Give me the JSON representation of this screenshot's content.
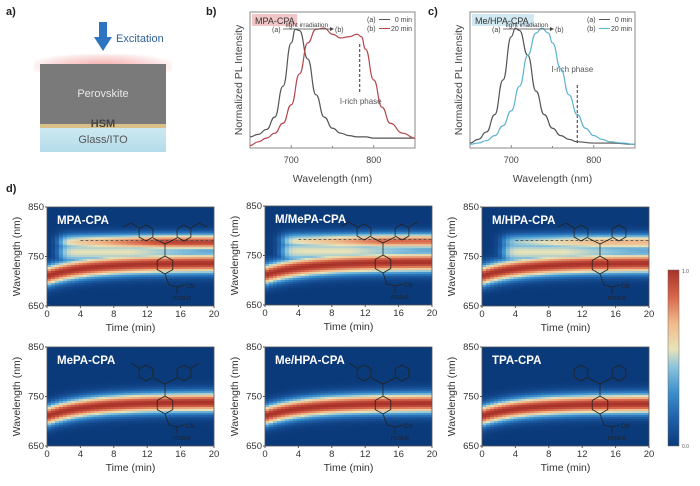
{
  "panels": {
    "a": {
      "label": "a)",
      "excitation_label": "Excitation",
      "layers": [
        "Perovskite",
        "HSM",
        "Glass/ITO"
      ],
      "colors": {
        "perovskite": "#7a7a7a",
        "glow": "#f4a6a6",
        "hsm": "#d9c089",
        "glass": "#bfe3ee",
        "arrow": "#2f74c0"
      }
    },
    "b": {
      "label": "b)"
    },
    "c": {
      "label": "c)"
    },
    "d": {
      "label": "d)"
    }
  },
  "chart_data": [
    {
      "id": "b",
      "type": "line",
      "title": "MPA-CPA",
      "title_bg": "#f2c6c6",
      "xlabel": "Wavelength (nm)",
      "ylabel": "Normalized PL Intensity",
      "xlim": [
        650,
        850
      ],
      "ylim": [
        0,
        1.1
      ],
      "xticks": [
        700,
        800
      ],
      "annotation_arrow": {
        "from": "(a)",
        "to": "(b)",
        "text": "light irradiation"
      },
      "dashed_line": {
        "x": 783,
        "label": "I-rich phase"
      },
      "legend": [
        {
          "key": "(a)",
          "name": "0 min",
          "color": "#555555"
        },
        {
          "key": "(b)",
          "name": "20 min",
          "color": "#b5474b"
        }
      ],
      "series": [
        {
          "name": "0 min",
          "color": "#555555",
          "x": [
            650,
            660,
            670,
            680,
            690,
            700,
            705,
            710,
            720,
            730,
            740,
            750,
            760,
            770,
            780,
            790,
            800,
            820,
            850
          ],
          "y": [
            0.09,
            0.11,
            0.15,
            0.25,
            0.5,
            0.85,
            0.96,
            0.95,
            0.72,
            0.43,
            0.25,
            0.16,
            0.12,
            0.1,
            0.09,
            0.09,
            0.08,
            0.08,
            0.08
          ]
        },
        {
          "name": "20 min",
          "color": "#b5474b",
          "x": [
            650,
            660,
            670,
            680,
            690,
            700,
            710,
            720,
            730,
            740,
            750,
            760,
            770,
            780,
            785,
            790,
            800,
            810,
            820,
            835,
            850
          ],
          "y": [
            0.02,
            0.05,
            0.08,
            0.12,
            0.2,
            0.35,
            0.6,
            0.85,
            0.96,
            0.97,
            0.92,
            0.89,
            0.9,
            0.92,
            0.9,
            0.8,
            0.55,
            0.33,
            0.2,
            0.12,
            0.08
          ]
        }
      ]
    },
    {
      "id": "c",
      "type": "line",
      "title": "Me/HPA-CPA",
      "title_bg": "#cfe8f2",
      "xlabel": "Wavelength (nm)",
      "ylabel": "Normalized PL Intensity",
      "xlim": [
        650,
        850
      ],
      "ylim": [
        0,
        1.1
      ],
      "xticks": [
        700,
        800
      ],
      "annotation_arrow": {
        "from": "(a)",
        "to": "(b)",
        "text": "light irradiation"
      },
      "dashed_line": {
        "x": 780,
        "label": "I-rich phase"
      },
      "legend": [
        {
          "key": "(a)",
          "name": "0 min",
          "color": "#555555"
        },
        {
          "key": "(b)",
          "name": "20 min",
          "color": "#5fb3d0"
        }
      ],
      "series": [
        {
          "name": "0 min",
          "color": "#555555",
          "x": [
            650,
            660,
            670,
            680,
            690,
            700,
            705,
            710,
            720,
            730,
            740,
            750,
            760,
            770,
            780,
            800,
            820,
            850
          ],
          "y": [
            0.04,
            0.07,
            0.13,
            0.27,
            0.55,
            0.9,
            0.97,
            0.95,
            0.75,
            0.46,
            0.27,
            0.16,
            0.1,
            0.07,
            0.05,
            0.04,
            0.04,
            0.03
          ]
        },
        {
          "name": "20 min",
          "color": "#5fb3d0",
          "x": [
            650,
            660,
            670,
            680,
            690,
            700,
            710,
            720,
            730,
            737,
            745,
            750,
            760,
            770,
            780,
            790,
            800,
            810,
            820,
            835,
            850
          ],
          "y": [
            0.03,
            0.04,
            0.06,
            0.1,
            0.18,
            0.3,
            0.5,
            0.75,
            0.93,
            0.97,
            0.93,
            0.85,
            0.64,
            0.43,
            0.27,
            0.16,
            0.1,
            0.07,
            0.05,
            0.04,
            0.03
          ]
        }
      ]
    },
    {
      "id": "d",
      "type": "heatmap",
      "xlabel": "Time (min)",
      "ylabel": "Wavelength (nm)",
      "xlim": [
        0,
        20
      ],
      "ylim": [
        650,
        850
      ],
      "xticks": [
        0,
        4,
        8,
        12,
        16,
        20
      ],
      "yticks": [
        650,
        750,
        850
      ],
      "colorbar": {
        "min": "0.0",
        "max": "1.0",
        "colormap": "RdYlBu_r"
      },
      "i_rich_line_nm": 782,
      "maps": [
        {
          "name": "MPA-CPA",
          "structure": "OMe/OMe",
          "main_peak_start": 712,
          "main_peak_end": 738,
          "i_rich": true,
          "i_rich_strength": 0.95,
          "i_rich_onset_min": 1.5
        },
        {
          "name": "M/MePA-CPA",
          "structure": "OMe/Me",
          "main_peak_start": 712,
          "main_peak_end": 738,
          "i_rich": true,
          "i_rich_strength": 0.85,
          "i_rich_onset_min": 2.0
        },
        {
          "name": "M/HPA-CPA",
          "structure": "OMe/H",
          "main_peak_start": 712,
          "main_peak_end": 738,
          "i_rich": true,
          "i_rich_strength": 0.7,
          "i_rich_onset_min": 2.5
        },
        {
          "name": "MePA-CPA",
          "structure": "Me/Me",
          "main_peak_start": 712,
          "main_peak_end": 740,
          "i_rich": false
        },
        {
          "name": "Me/HPA-CPA",
          "structure": "Me/H",
          "main_peak_start": 712,
          "main_peak_end": 738,
          "i_rich": false
        },
        {
          "name": "TPA-CPA",
          "structure": "H/H",
          "main_peak_start": 712,
          "main_peak_end": 737,
          "i_rich": false
        }
      ],
      "structure_labels": {
        "cn": "CN",
        "po": "PO3H2"
      }
    }
  ]
}
